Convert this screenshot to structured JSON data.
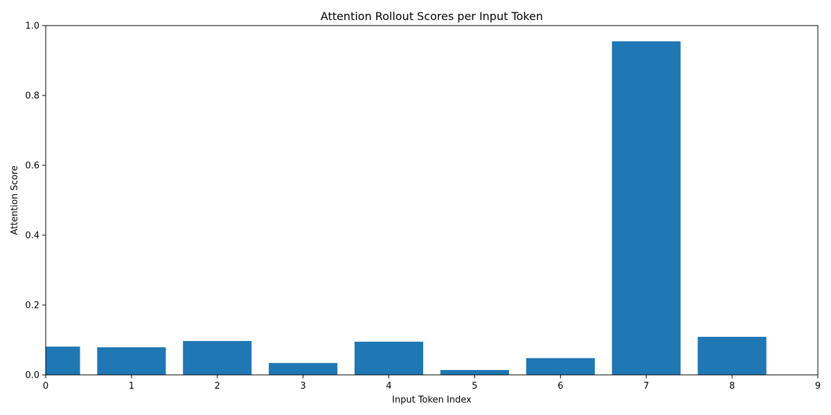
{
  "chart_data": {
    "type": "bar",
    "title": "Attention Rollout Scores per Input Token",
    "xlabel": "Input Token Index",
    "ylabel": "Attention Score",
    "categories": [
      0,
      1,
      2,
      3,
      4,
      5,
      6,
      7,
      8
    ],
    "values": [
      0.081,
      0.079,
      0.097,
      0.034,
      0.095,
      0.014,
      0.048,
      0.955,
      0.109
    ],
    "bar_width": 0.8,
    "xlim": [
      0,
      9
    ],
    "ylim": [
      0,
      1.0
    ],
    "xticks": [
      0,
      1,
      2,
      3,
      4,
      5,
      6,
      7,
      8,
      9
    ],
    "yticks": [
      0.0,
      0.2,
      0.4,
      0.6,
      0.8,
      1.0
    ],
    "ytick_labels": [
      "0.0",
      "0.2",
      "0.4",
      "0.6",
      "0.8",
      "1.0"
    ],
    "bar_color": "#1f77b4",
    "grid": false,
    "legend": "none"
  }
}
